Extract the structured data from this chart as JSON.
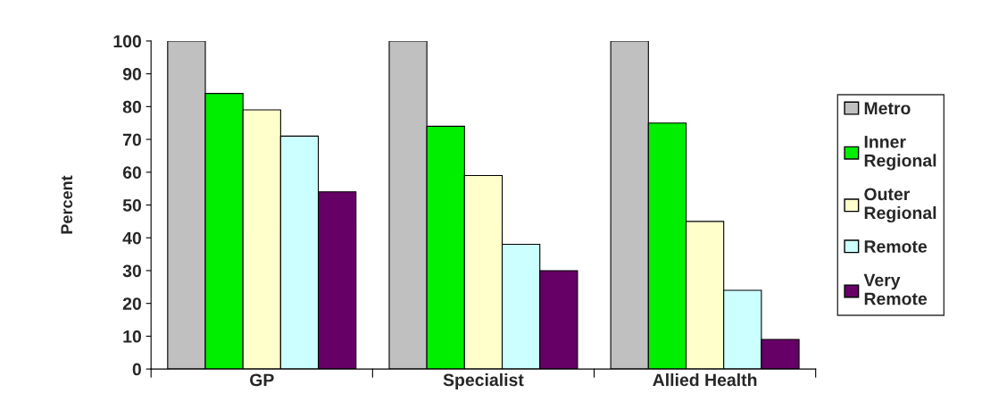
{
  "chart_data": {
    "type": "bar",
    "ylabel": "Percent",
    "categories": [
      "GP",
      "Specialist",
      "Allied Health"
    ],
    "series": [
      {
        "name": "Metro",
        "color": "#c0c0c0",
        "values": [
          100,
          100,
          100
        ]
      },
      {
        "name": "Inner Regional",
        "color": "#00ee00",
        "values": [
          84,
          74,
          75
        ]
      },
      {
        "name": "Outer Regional",
        "color": "#ffffcc",
        "values": [
          79,
          59,
          45
        ]
      },
      {
        "name": "Remote",
        "color": "#ccffff",
        "values": [
          71,
          38,
          24
        ]
      },
      {
        "name": "Very Remote",
        "color": "#660066",
        "values": [
          54,
          30,
          9
        ]
      }
    ],
    "ylim": [
      0,
      100
    ],
    "yticks": [
      0,
      10,
      20,
      30,
      40,
      50,
      60,
      70,
      80,
      90,
      100
    ],
    "grid": false,
    "legend": "right"
  }
}
